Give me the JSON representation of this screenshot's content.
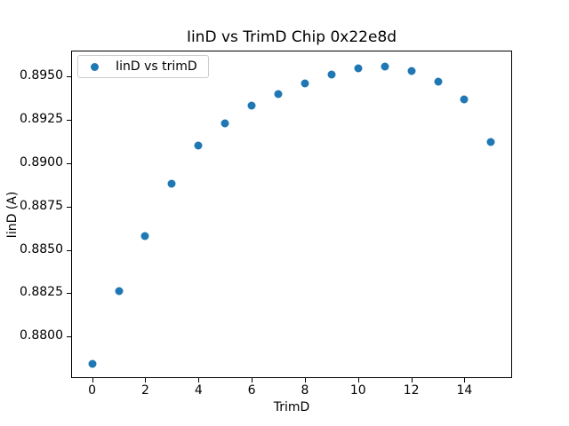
{
  "chart_data": {
    "type": "scatter",
    "title": "IinD vs TrimD Chip 0x22e8d",
    "xlabel": "TrimD",
    "ylabel": "IinD (A)",
    "legend": {
      "label": "IinD vs trimD",
      "position": "upper-left"
    },
    "x": [
      0,
      1,
      2,
      3,
      4,
      5,
      6,
      7,
      8,
      9,
      10,
      11,
      12,
      13,
      14,
      15
    ],
    "series": [
      {
        "name": "IinD vs trimD",
        "values": [
          0.8784,
          0.8826,
          0.8858,
          0.8888,
          0.891,
          0.8923,
          0.8933,
          0.894,
          0.8946,
          0.8951,
          0.8955,
          0.8956,
          0.8953,
          0.8947,
          0.8937,
          0.8912
        ],
        "color": "#1f77b4"
      }
    ],
    "xlim": [
      -0.79,
      15.79
    ],
    "ylim": [
      0.8776,
      0.8965
    ],
    "xticks": [
      "0",
      "2",
      "4",
      "6",
      "8",
      "10",
      "12",
      "14"
    ],
    "yticks": [
      "0.8800",
      "0.8825",
      "0.8850",
      "0.8875",
      "0.8900",
      "0.8925",
      "0.8950"
    ],
    "grid": false,
    "axes_color": "#000000",
    "background": "#ffffff",
    "legend_border_color": "#cccccc"
  }
}
